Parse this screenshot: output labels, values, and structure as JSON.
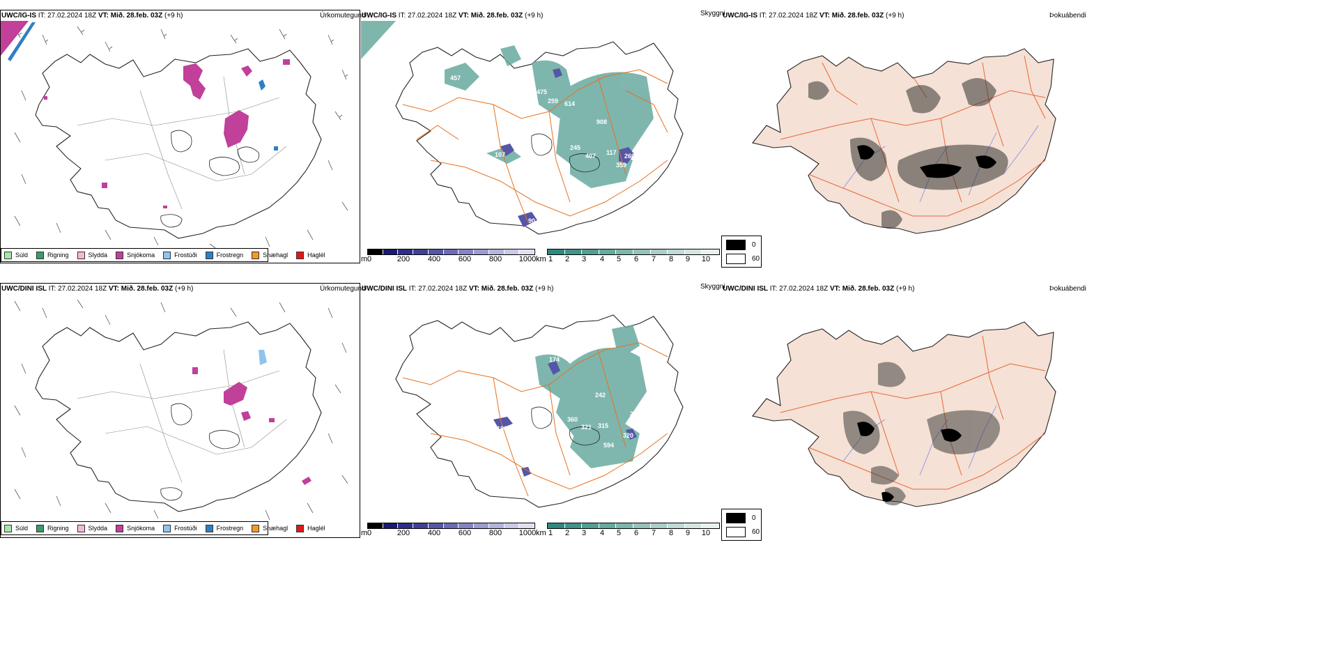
{
  "rows": [
    {
      "model_label": "UWC/IG-IS",
      "it_label": "IT:",
      "it_value": "27.02.2024 18Z",
      "vt_label": "VT:",
      "vt_value": "Mið. 28.feb. 03Z",
      "lead": "(+9 h)"
    },
    {
      "model_label": "UWC/DINI ISL",
      "it_label": "IT:",
      "it_value": "27.02.2024 18Z",
      "vt_label": "VT:",
      "vt_value": "Mið. 28.feb. 03Z",
      "lead": "(+9 h)"
    }
  ],
  "panel_titles": {
    "precip_type": "Úrkomutegund",
    "visibility": "Skyggni",
    "fog": "Þokuábendi"
  },
  "precip_legend": [
    {
      "label": "Súld",
      "color": "#a6e6a6"
    },
    {
      "label": "Rigning",
      "color": "#3a9a6a"
    },
    {
      "label": "Slydda",
      "color": "#f4b8d8"
    },
    {
      "label": "Snjókoma",
      "color": "#c0409a"
    },
    {
      "label": "Frostúði",
      "color": "#90c4ee"
    },
    {
      "label": "Frostregn",
      "color": "#2f7fc4"
    },
    {
      "label": "Snæhagl",
      "color": "#f09a2a"
    },
    {
      "label": "Haglél",
      "color": "#e01818"
    }
  ],
  "ceiling_scale": {
    "unit": "m",
    "ticks": [
      "0",
      "200",
      "400",
      "600",
      "800",
      "1000"
    ],
    "colors": [
      "#000000",
      "#1a1a6e",
      "#2e2e8a",
      "#404098",
      "#5656a8",
      "#6c6cb6",
      "#8484c4",
      "#9c9cd0",
      "#b4b4dc",
      "#cacae6",
      "#e0e0f0"
    ]
  },
  "vis_scale": {
    "unit": "km",
    "ticks": [
      "1",
      "2",
      "3",
      "4",
      "5",
      "6",
      "7",
      "8",
      "9",
      "10"
    ],
    "colors": [
      "#2e8a80",
      "#3e948a",
      "#529e94",
      "#68aaa0",
      "#7eb6ac",
      "#96c2ba",
      "#aacec8",
      "#c0dad6",
      "#d4e6e2",
      "#e8f2f0"
    ]
  },
  "fog_scale": {
    "high": "0",
    "low": "60",
    "high_color": "#000000",
    "low_color": "#ffffff"
  },
  "map_labels": {
    "row1": [
      "457",
      "475",
      "259",
      "614",
      "908",
      "107",
      "245",
      "407",
      "117",
      "260",
      "208",
      "359",
      "90"
    ],
    "row2": [
      "174",
      "242",
      "360",
      "321",
      "315",
      "594",
      "320",
      "180",
      "24",
      "27"
    ]
  },
  "colors": {
    "land_fill": "#f5e1d5",
    "roads": "#e8701e",
    "rivers": "#7a8be8",
    "vis_fill": "#4e9e96",
    "snow": "#c0409a"
  }
}
